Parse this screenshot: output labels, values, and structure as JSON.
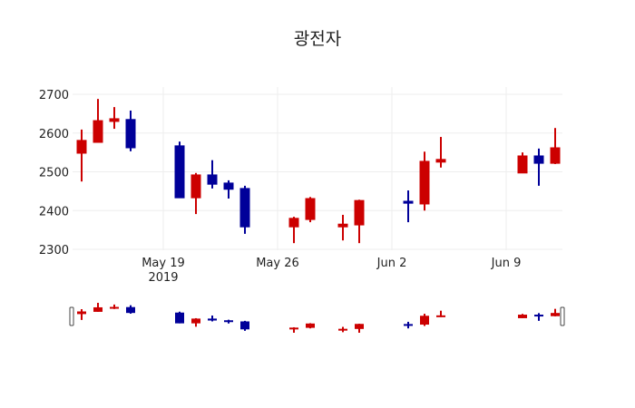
{
  "chart_data": {
    "type": "candlestick",
    "title": "광전자",
    "xlabel": "",
    "ylabel": "",
    "ylim": [
      2300,
      2700
    ],
    "y_ticks": [
      2300,
      2400,
      2500,
      2600,
      2700
    ],
    "x_ticks": [
      {
        "label": "May 19",
        "sublabel": "2019",
        "date": "2019-05-19"
      },
      {
        "label": "May 26",
        "sublabel": "",
        "date": "2019-05-26"
      },
      {
        "label": "Jun 2",
        "sublabel": "",
        "date": "2019-06-02"
      },
      {
        "label": "Jun 9",
        "sublabel": "",
        "date": "2019-06-09"
      }
    ],
    "grid": true,
    "rangeslider": true,
    "increasing_color": "#cc0000",
    "decreasing_color": "#000099",
    "data": [
      {
        "date": "2019-05-14",
        "open": 2548,
        "high": 2609,
        "low": 2475,
        "close": 2581
      },
      {
        "date": "2019-05-15",
        "open": 2576,
        "high": 2688,
        "low": 2576,
        "close": 2632
      },
      {
        "date": "2019-05-16",
        "open": 2630,
        "high": 2667,
        "low": 2611,
        "close": 2637
      },
      {
        "date": "2019-05-17",
        "open": 2635,
        "high": 2658,
        "low": 2553,
        "close": 2562
      },
      {
        "date": "2019-05-20",
        "open": 2567,
        "high": 2578,
        "low": 2433,
        "close": 2433
      },
      {
        "date": "2019-05-21",
        "open": 2433,
        "high": 2497,
        "low": 2391,
        "close": 2492
      },
      {
        "date": "2019-05-22",
        "open": 2492,
        "high": 2530,
        "low": 2457,
        "close": 2468
      },
      {
        "date": "2019-05-23",
        "open": 2471,
        "high": 2478,
        "low": 2431,
        "close": 2455
      },
      {
        "date": "2019-05-24",
        "open": 2457,
        "high": 2464,
        "low": 2340,
        "close": 2358
      },
      {
        "date": "2019-05-27",
        "open": 2358,
        "high": 2384,
        "low": 2316,
        "close": 2380
      },
      {
        "date": "2019-05-28",
        "open": 2377,
        "high": 2435,
        "low": 2370,
        "close": 2431
      },
      {
        "date": "2019-05-30",
        "open": 2358,
        "high": 2389,
        "low": 2323,
        "close": 2365
      },
      {
        "date": "2019-05-31",
        "open": 2363,
        "high": 2428,
        "low": 2316,
        "close": 2426
      },
      {
        "date": "2019-06-03",
        "open": 2424,
        "high": 2452,
        "low": 2370,
        "close": 2419
      },
      {
        "date": "2019-06-04",
        "open": 2417,
        "high": 2552,
        "low": 2400,
        "close": 2527
      },
      {
        "date": "2019-06-05",
        "open": 2525,
        "high": 2590,
        "low": 2511,
        "close": 2532
      },
      {
        "date": "2019-06-10",
        "open": 2497,
        "high": 2550,
        "low": 2497,
        "close": 2541
      },
      {
        "date": "2019-06-11",
        "open": 2541,
        "high": 2560,
        "low": 2464,
        "close": 2522
      },
      {
        "date": "2019-06-12",
        "open": 2522,
        "high": 2613,
        "low": 2520,
        "close": 2562
      }
    ]
  }
}
